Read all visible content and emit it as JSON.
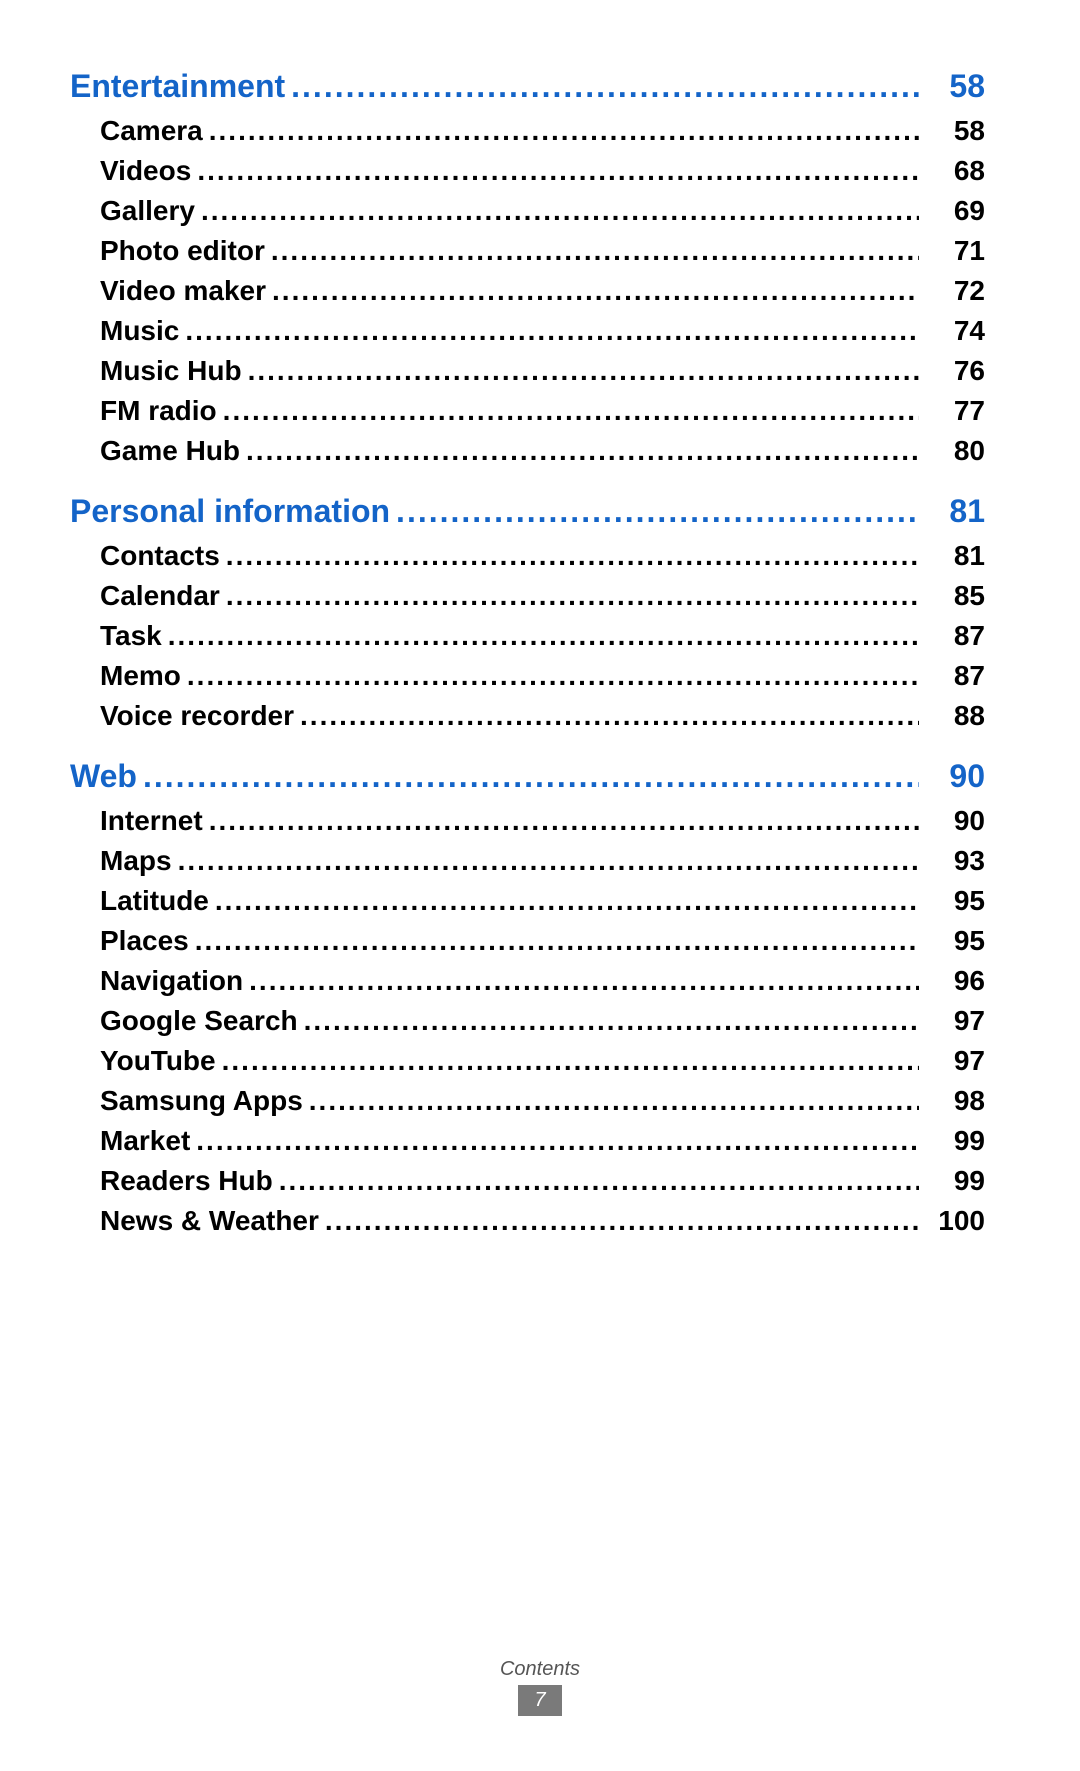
{
  "colors": {
    "section_color": "#1464c8",
    "item_color": "#000000",
    "background": "#ffffff",
    "footer_text": "#555555",
    "footer_badge_bg": "#7a7a7a",
    "footer_badge_text": "#ffffff"
  },
  "typography": {
    "section_fontsize": 32,
    "item_fontsize": 28,
    "footer_fontsize": 20,
    "font_family": "Arial, Helvetica, sans-serif",
    "weight": "bold"
  },
  "footer": {
    "label": "Contents",
    "page_number": "7"
  },
  "sections": [
    {
      "title": "Entertainment",
      "page": "58",
      "items": [
        {
          "label": "Camera",
          "page": "58"
        },
        {
          "label": "Videos",
          "page": "68"
        },
        {
          "label": "Gallery",
          "page": "69"
        },
        {
          "label": "Photo editor",
          "page": "71"
        },
        {
          "label": "Video maker",
          "page": "72"
        },
        {
          "label": "Music",
          "page": "74"
        },
        {
          "label": "Music Hub",
          "page": "76"
        },
        {
          "label": "FM radio",
          "page": "77"
        },
        {
          "label": "Game Hub",
          "page": "80"
        }
      ]
    },
    {
      "title": "Personal information",
      "page": "81",
      "items": [
        {
          "label": "Contacts",
          "page": "81"
        },
        {
          "label": "Calendar",
          "page": "85"
        },
        {
          "label": "Task",
          "page": "87"
        },
        {
          "label": "Memo",
          "page": "87"
        },
        {
          "label": "Voice recorder",
          "page": "88"
        }
      ]
    },
    {
      "title": "Web",
      "page": "90",
      "items": [
        {
          "label": "Internet",
          "page": "90"
        },
        {
          "label": "Maps",
          "page": "93"
        },
        {
          "label": "Latitude",
          "page": "95"
        },
        {
          "label": "Places",
          "page": "95"
        },
        {
          "label": "Navigation",
          "page": "96"
        },
        {
          "label": "Google Search",
          "page": "97"
        },
        {
          "label": "YouTube",
          "page": "97"
        },
        {
          "label": "Samsung Apps",
          "page": "98"
        },
        {
          "label": "Market",
          "page": "99"
        },
        {
          "label": "Readers Hub",
          "page": "99"
        },
        {
          "label": "News & Weather",
          "page": "100"
        }
      ]
    }
  ]
}
